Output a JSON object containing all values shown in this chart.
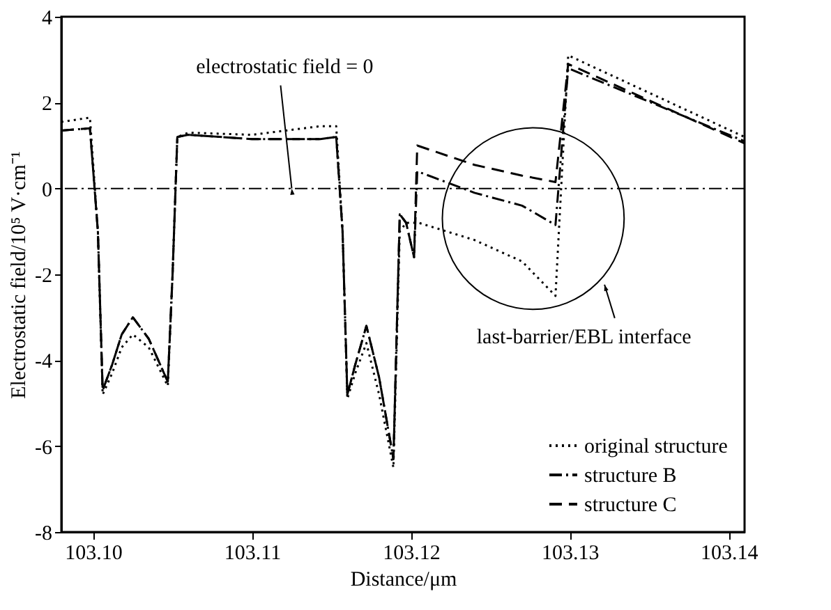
{
  "chart_data": {
    "type": "line",
    "xlabel": "Distance/μm",
    "ylabel": "Electrostatic field/10⁵ V·cm⁻¹",
    "xlim": [
      103.098,
      103.141
    ],
    "ylim": [
      -8,
      4
    ],
    "xticks": [
      {
        "value": 103.1,
        "label": "103.10"
      },
      {
        "value": 103.11,
        "label": "103.11"
      },
      {
        "value": 103.12,
        "label": "103.12"
      },
      {
        "value": 103.13,
        "label": "103.13"
      },
      {
        "value": 103.14,
        "label": "103.14"
      }
    ],
    "yticks": [
      -8,
      -6,
      -4,
      -2,
      0,
      2,
      4
    ],
    "grid": false,
    "legend": "bottom right",
    "marker": "none",
    "series": [
      {
        "name": "original structure",
        "color": "#000000",
        "line_style": "dotted",
        "x": [
          103.098,
          103.0998,
          103.1003,
          103.1006,
          103.1012,
          103.1018,
          103.1025,
          103.1035,
          103.1047,
          103.105,
          103.1053,
          103.106,
          103.11,
          103.1143,
          103.1153,
          103.1157,
          103.116,
          103.1165,
          103.1172,
          103.118,
          103.1189,
          103.1193,
          103.1197,
          103.1205,
          103.124,
          103.127,
          103.1291,
          103.1299,
          103.141
        ],
        "values": [
          1.55,
          1.65,
          -1.0,
          -4.8,
          -4.3,
          -3.7,
          -3.4,
          -3.7,
          -4.6,
          -2.0,
          1.2,
          1.3,
          1.25,
          1.45,
          1.45,
          -1.0,
          -4.9,
          -4.3,
          -3.6,
          -4.8,
          -6.5,
          -1.0,
          -0.8,
          -0.8,
          -1.2,
          -1.7,
          -2.5,
          3.1,
          1.2
        ]
      },
      {
        "name": "structure B",
        "color": "#000000",
        "line_style": "dashdot",
        "x": [
          103.098,
          103.0998,
          103.1003,
          103.1006,
          103.1012,
          103.1018,
          103.1025,
          103.1035,
          103.1047,
          103.105,
          103.1053,
          103.106,
          103.11,
          103.1143,
          103.1153,
          103.1157,
          103.116,
          103.1165,
          103.1172,
          103.118,
          103.1189,
          103.1193,
          103.1197,
          103.1202,
          103.1204,
          103.124,
          103.127,
          103.1291,
          103.1299,
          103.141
        ],
        "values": [
          1.35,
          1.4,
          -1.0,
          -4.7,
          -4.1,
          -3.4,
          -3.0,
          -3.5,
          -4.5,
          -2.0,
          1.2,
          1.25,
          1.15,
          1.15,
          1.2,
          -1.0,
          -4.8,
          -4.1,
          -3.2,
          -4.4,
          -6.3,
          -0.6,
          -0.8,
          -1.6,
          0.4,
          -0.1,
          -0.4,
          -0.85,
          2.8,
          1.1
        ]
      },
      {
        "name": "structure C",
        "color": "#000000",
        "line_style": "dashed",
        "x": [
          103.098,
          103.0998,
          103.1003,
          103.1006,
          103.1012,
          103.1018,
          103.1025,
          103.1035,
          103.1047,
          103.105,
          103.1053,
          103.106,
          103.11,
          103.1143,
          103.1153,
          103.1157,
          103.116,
          103.1165,
          103.1172,
          103.118,
          103.1189,
          103.1193,
          103.1197,
          103.1202,
          103.1204,
          103.124,
          103.127,
          103.1291,
          103.1299,
          103.141
        ],
        "values": [
          1.35,
          1.4,
          -1.0,
          -4.7,
          -4.1,
          -3.4,
          -3.0,
          -3.5,
          -4.5,
          -2.0,
          1.2,
          1.25,
          1.15,
          1.15,
          1.2,
          -1.0,
          -4.8,
          -4.1,
          -3.2,
          -4.4,
          -6.3,
          -0.6,
          -0.8,
          -1.6,
          1.0,
          0.55,
          0.3,
          0.15,
          2.9,
          1.05
        ]
      }
    ],
    "ref_lines": [
      {
        "axis": "y",
        "value": 0,
        "line_style": "dashdot",
        "color": "#000000"
      }
    ],
    "annotations": [
      {
        "text": "electrostatic field = 0",
        "x": 103.1125,
        "y": 0
      },
      "last-barrier/EBL interface"
    ]
  }
}
